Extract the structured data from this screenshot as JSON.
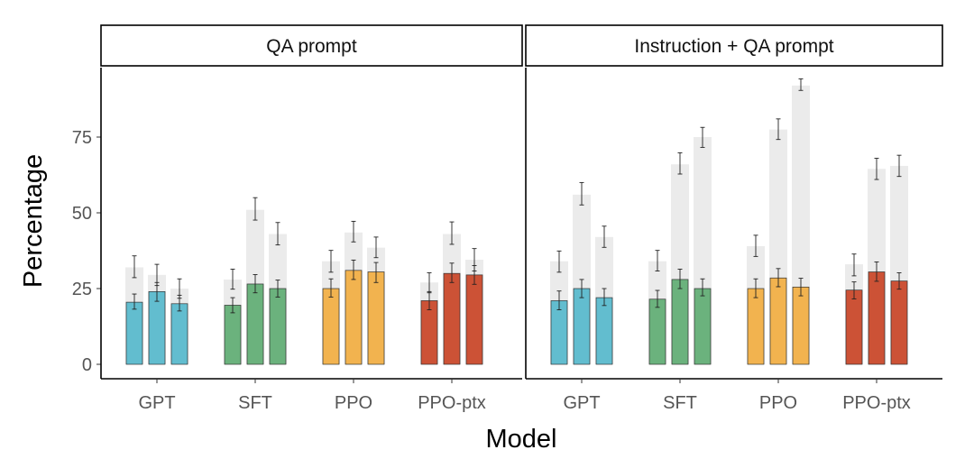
{
  "chart_data": {
    "type": "bar",
    "xlabel": "Model",
    "ylabel": "Percentage",
    "ylim": [
      0,
      97
    ],
    "yticks": [
      "0",
      "25",
      "50",
      "75"
    ],
    "categories": [
      "GPT",
      "SFT",
      "PPO",
      "PPO-ptx"
    ],
    "colors": {
      "GPT": "#62bdcf",
      "SFT": "#6bb27d",
      "PPO": "#f2b34f",
      "PPO-ptx": "#cc5236",
      "background_bar": "#ebebeb"
    },
    "note": "",
    "panels": [
      {
        "title": "QA prompt",
        "groups": [
          {
            "model": "GPT",
            "bars": [
              {
                "value": 20.5,
                "err": [
                  18.2,
                  23.2
                ],
                "bg": 32.0,
                "bg_err": [
                  28.6,
                  35.8
                ]
              },
              {
                "value": 24.0,
                "err": [
                  20.8,
                  27.0
                ],
                "bg": 29.5,
                "bg_err": [
                  26.0,
                  33.0
                ]
              },
              {
                "value": 20.0,
                "err": [
                  17.6,
                  22.8
                ],
                "bg": 25.0,
                "bg_err": [
                  21.8,
                  28.2
                ]
              }
            ]
          },
          {
            "model": "SFT",
            "bars": [
              {
                "value": 19.5,
                "err": [
                  17.0,
                  22.0
                ],
                "bg": 28.0,
                "bg_err": [
                  24.8,
                  31.4
                ]
              },
              {
                "value": 26.5,
                "err": [
                  23.6,
                  29.6
                ],
                "bg": 51.0,
                "bg_err": [
                  47.6,
                  55.0
                ]
              },
              {
                "value": 25.0,
                "err": [
                  22.2,
                  27.8
                ],
                "bg": 43.0,
                "bg_err": [
                  39.4,
                  46.8
                ]
              }
            ]
          },
          {
            "model": "PPO",
            "bars": [
              {
                "value": 25.0,
                "err": [
                  22.2,
                  28.2
                ],
                "bg": 34.0,
                "bg_err": [
                  30.4,
                  37.6
                ]
              },
              {
                "value": 31.0,
                "err": [
                  28.0,
                  34.4
                ],
                "bg": 43.5,
                "bg_err": [
                  40.4,
                  47.2
                ]
              },
              {
                "value": 30.5,
                "err": [
                  27.0,
                  33.6
                ],
                "bg": 38.5,
                "bg_err": [
                  35.2,
                  42.0
                ]
              }
            ]
          },
          {
            "model": "PPO-ptx",
            "bars": [
              {
                "value": 21.0,
                "err": [
                  18.0,
                  24.0
                ],
                "bg": 27.0,
                "bg_err": [
                  23.6,
                  30.2
                ]
              },
              {
                "value": 30.0,
                "err": [
                  27.0,
                  33.4
                ],
                "bg": 43.0,
                "bg_err": [
                  39.6,
                  47.0
                ]
              },
              {
                "value": 29.5,
                "err": [
                  26.4,
                  32.6
                ],
                "bg": 34.5,
                "bg_err": [
                  30.8,
                  38.2
                ]
              }
            ]
          }
        ]
      },
      {
        "title": "Instruction + QA prompt",
        "groups": [
          {
            "model": "GPT",
            "bars": [
              {
                "value": 21.0,
                "err": [
                  18.0,
                  24.2
                ],
                "bg": 34.0,
                "bg_err": [
                  30.4,
                  37.4
                ]
              },
              {
                "value": 25.0,
                "err": [
                  22.0,
                  28.0
                ],
                "bg": 56.0,
                "bg_err": [
                  52.6,
                  60.0
                ]
              },
              {
                "value": 22.0,
                "err": [
                  19.4,
                  25.0
                ],
                "bg": 42.0,
                "bg_err": [
                  38.6,
                  45.6
                ]
              }
            ]
          },
          {
            "model": "SFT",
            "bars": [
              {
                "value": 21.5,
                "err": [
                  18.8,
                  24.4
                ],
                "bg": 34.0,
                "bg_err": [
                  30.8,
                  37.6
                ]
              },
              {
                "value": 28.0,
                "err": [
                  25.0,
                  31.4
                ],
                "bg": 66.0,
                "bg_err": [
                  62.8,
                  69.8
                ]
              },
              {
                "value": 25.0,
                "err": [
                  22.6,
                  28.2
                ],
                "bg": 75.0,
                "bg_err": [
                  71.6,
                  78.2
                ]
              }
            ]
          },
          {
            "model": "PPO",
            "bars": [
              {
                "value": 25.0,
                "err": [
                  22.0,
                  28.2
                ],
                "bg": 39.0,
                "bg_err": [
                  35.6,
                  42.6
                ]
              },
              {
                "value": 28.5,
                "err": [
                  25.6,
                  31.6
                ],
                "bg": 77.5,
                "bg_err": [
                  74.2,
                  81.0
                ]
              },
              {
                "value": 25.5,
                "err": [
                  22.6,
                  28.4
                ],
                "bg": 92.0,
                "bg_err": [
                  90.4,
                  94.2
                ]
              }
            ]
          },
          {
            "model": "PPO-ptx",
            "bars": [
              {
                "value": 24.5,
                "err": [
                  21.6,
                  27.2
                ],
                "bg": 33.0,
                "bg_err": [
                  29.2,
                  36.4
                ]
              },
              {
                "value": 30.5,
                "err": [
                  27.4,
                  33.8
                ],
                "bg": 64.5,
                "bg_err": [
                  61.0,
                  68.0
                ]
              },
              {
                "value": 27.5,
                "err": [
                  24.8,
                  30.2
                ],
                "bg": 65.5,
                "bg_err": [
                  62.0,
                  69.0
                ]
              }
            ]
          }
        ]
      }
    ]
  }
}
